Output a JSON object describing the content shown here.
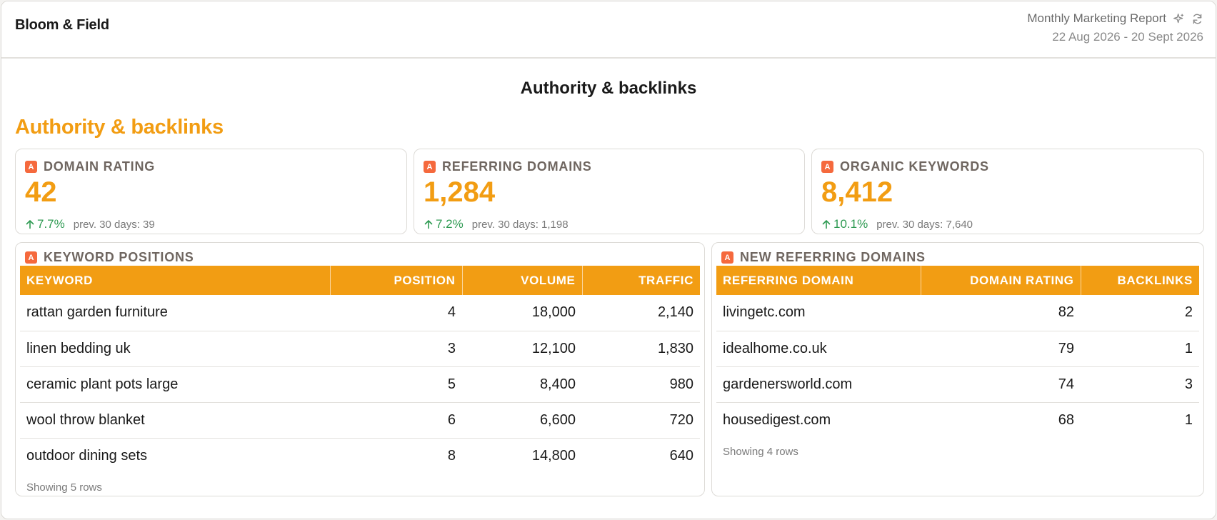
{
  "header": {
    "brand": "Bloom & Field",
    "report_title": "Monthly Marketing Report",
    "date_range": "22 Aug 2026 - 20 Sept 2026",
    "icons": [
      "sparkle-icon",
      "refresh-icon"
    ]
  },
  "page": {
    "heading": "Authority & backlinks",
    "section_title": "Authority & backlinks"
  },
  "colors": {
    "accent": "#f29d13",
    "positive": "#2e9a52",
    "source_badge": "#f5693d"
  },
  "kpis": [
    {
      "label": "DOMAIN RATING",
      "value": "42",
      "delta": "7.7%",
      "prev": "prev. 30 days: 39"
    },
    {
      "label": "REFERRING DOMAINS",
      "value": "1,284",
      "delta": "7.2%",
      "prev": "prev. 30 days: 1,198"
    },
    {
      "label": "ORGANIC KEYWORDS",
      "value": "8,412",
      "delta": "10.1%",
      "prev": "prev. 30 days: 7,640"
    }
  ],
  "keyword_positions": {
    "title": "KEYWORD POSITIONS",
    "columns": [
      "KEYWORD",
      "POSITION",
      "VOLUME",
      "TRAFFIC"
    ],
    "rows": [
      [
        "rattan garden furniture",
        "4",
        "18,000",
        "2,140"
      ],
      [
        "linen bedding uk",
        "3",
        "12,100",
        "1,830"
      ],
      [
        "ceramic plant pots large",
        "5",
        "8,400",
        "980"
      ],
      [
        "wool throw blanket",
        "6",
        "6,600",
        "720"
      ],
      [
        "outdoor dining sets",
        "8",
        "14,800",
        "640"
      ]
    ],
    "footer": "Showing 5 rows"
  },
  "new_referring_domains": {
    "title": "NEW REFERRING DOMAINS",
    "columns": [
      "REFERRING DOMAIN",
      "DOMAIN RATING",
      "BACKLINKS"
    ],
    "rows": [
      [
        "livingetc.com",
        "82",
        "2"
      ],
      [
        "idealhome.co.uk",
        "79",
        "1"
      ],
      [
        "gardenersworld.com",
        "74",
        "3"
      ],
      [
        "housedigest.com",
        "68",
        "1"
      ]
    ],
    "footer": "Showing 4 rows"
  }
}
